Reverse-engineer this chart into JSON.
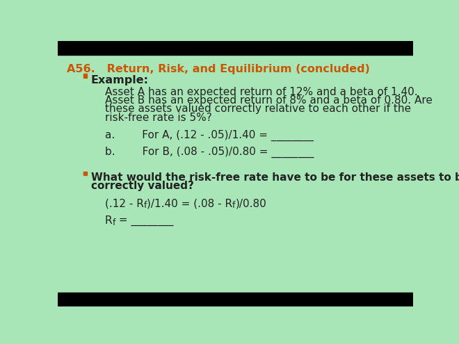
{
  "background_color": "#a8e6b8",
  "title_text_a56": "A56.",
  "title_text_rest": "   Return, Risk, and Equilibrium (concluded)",
  "title_color": "#cc5500",
  "title_fontsize": 11.5,
  "bullet_color": "#cc5500",
  "body_color": "#222222",
  "body_fontsize": 11,
  "bullet1_text": "Example:",
  "para1_line1": "Asset A has an expected return of 12% and a beta of 1.40.",
  "para1_line2": "Asset B has an expected return of 8% and a beta of 0.80. Are",
  "para1_line3": "these assets valued correctly relative to each other if the",
  "para1_line4": "risk-free rate is 5%?",
  "item_a": "a.        For A, (.12 - .05)/1.40 = ________",
  "item_b": "b.        For B, (.08 - .05)/0.80 = ________",
  "bullet2_line1": "What would the risk-free rate have to be for these assets to be",
  "bullet2_line2": "correctly valued?",
  "eq_line": "(.12 - Rf)/1.40 = (.08 - Rf)/0.80",
  "rf_line": "Rf = ________",
  "black_bar_height": 25,
  "font_family": "DejaVu Sans"
}
